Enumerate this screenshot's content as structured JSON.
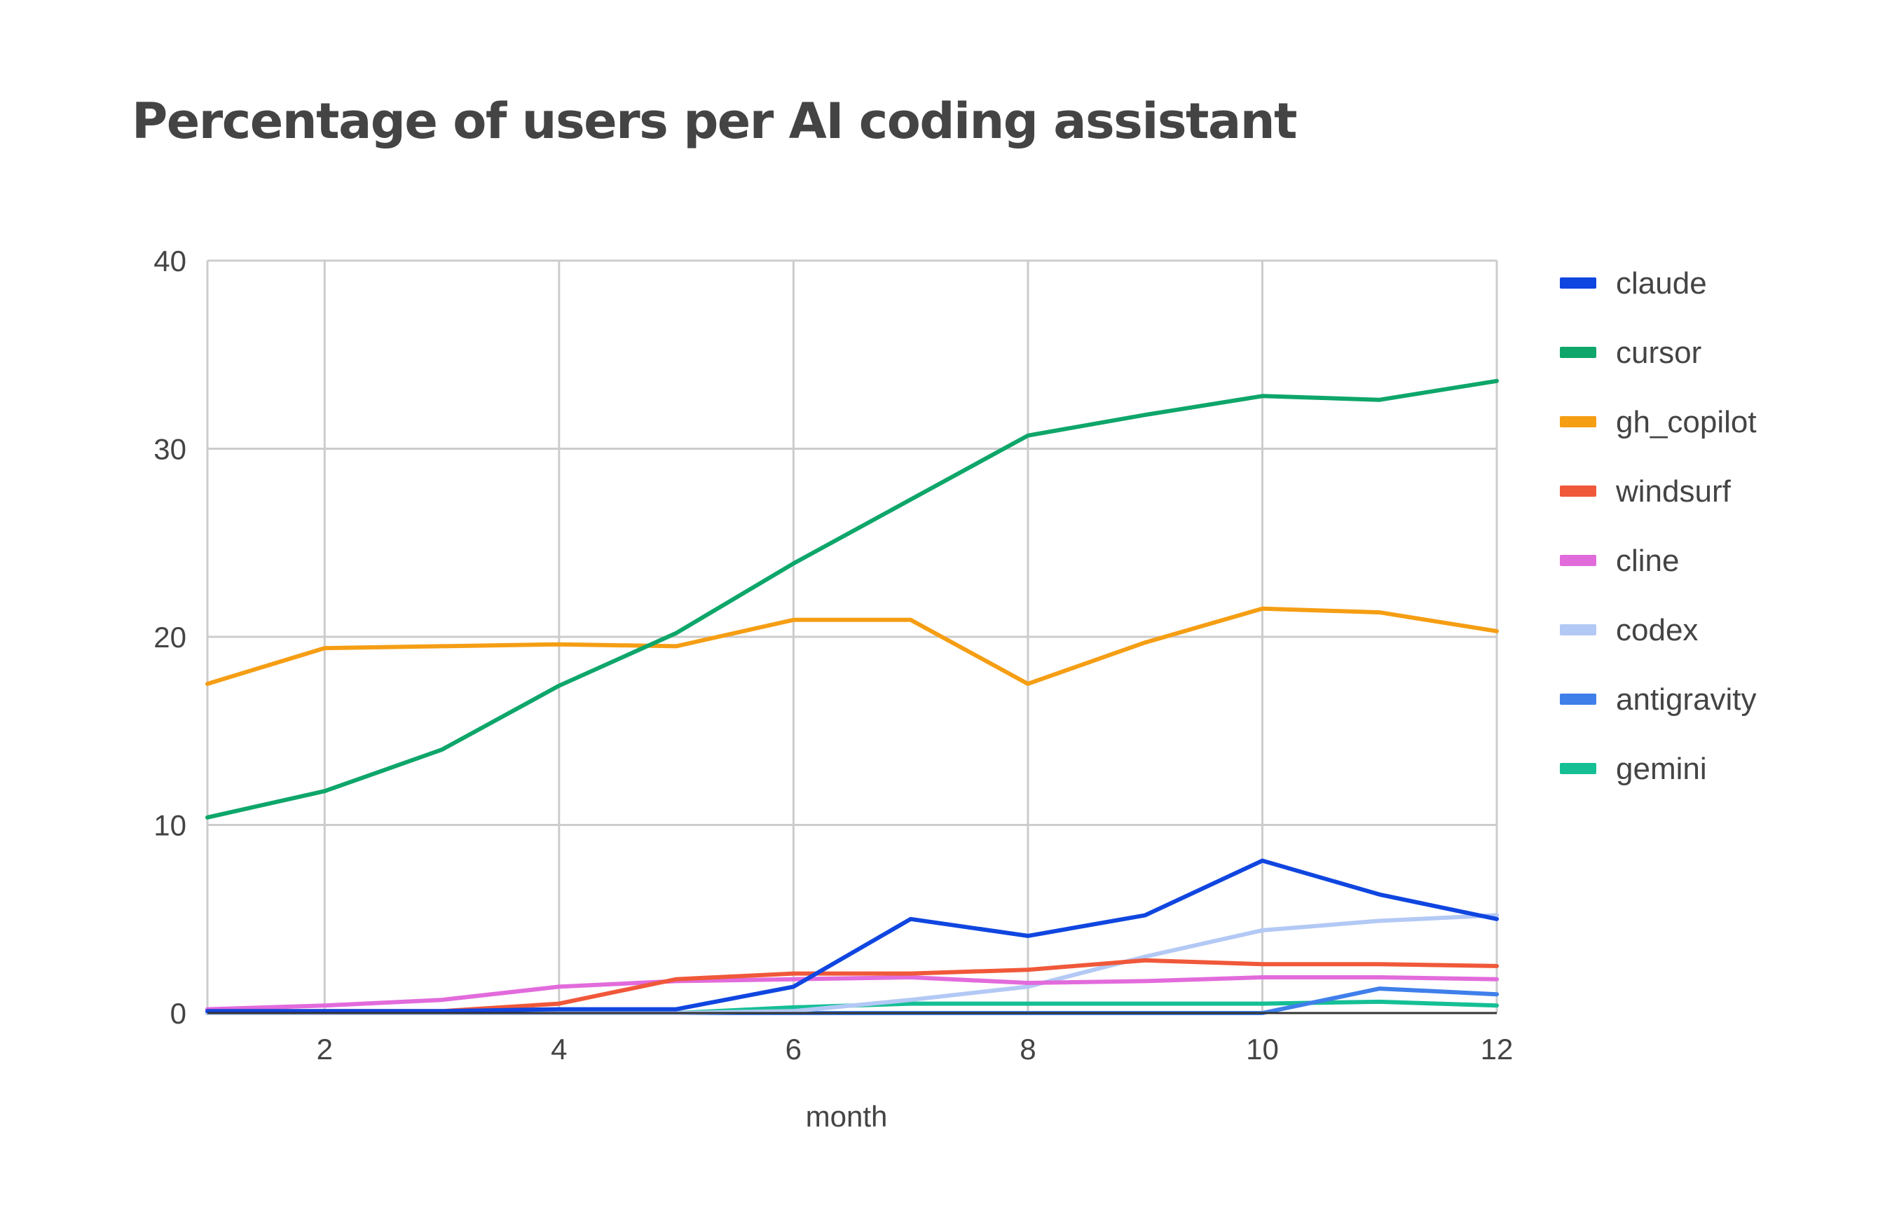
{
  "chart_data": {
    "type": "line",
    "title": "Percentage of users per AI coding assistant",
    "xlabel": "month",
    "ylabel": "",
    "xlim": [
      1,
      12
    ],
    "ylim": [
      0,
      40
    ],
    "x_ticks": [
      2,
      4,
      6,
      8,
      10,
      12
    ],
    "y_ticks": [
      0,
      10,
      20,
      30,
      40
    ],
    "grid": true,
    "legend_position": "right",
    "x": [
      1,
      2,
      3,
      4,
      5,
      6,
      7,
      8,
      9,
      10,
      11,
      12
    ],
    "series": [
      {
        "name": "claude",
        "color": "#1046e0",
        "values": [
          0.1,
          0.1,
          0.1,
          0.2,
          0.2,
          1.4,
          5.0,
          4.1,
          5.2,
          8.1,
          6.3,
          5.0
        ]
      },
      {
        "name": "cursor",
        "color": "#0ea66a",
        "values": [
          10.4,
          11.8,
          14.0,
          17.4,
          20.2,
          23.9,
          27.3,
          30.7,
          31.8,
          32.8,
          32.6,
          33.6
        ]
      },
      {
        "name": "gh_copilot",
        "color": "#f59e14",
        "values": [
          17.5,
          19.4,
          19.5,
          19.6,
          19.5,
          20.9,
          20.9,
          17.5,
          19.7,
          21.5,
          21.3,
          20.3
        ]
      },
      {
        "name": "windsurf",
        "color": "#f0583a",
        "values": [
          0.1,
          0.1,
          0.1,
          0.5,
          1.8,
          2.1,
          2.1,
          2.3,
          2.8,
          2.6,
          2.6,
          2.5
        ]
      },
      {
        "name": "cline",
        "color": "#e26bdc",
        "values": [
          0.2,
          0.4,
          0.7,
          1.4,
          1.7,
          1.8,
          1.9,
          1.6,
          1.7,
          1.9,
          1.9,
          1.8
        ]
      },
      {
        "name": "codex",
        "color": "#b3c9f5",
        "values": [
          0,
          0,
          0,
          0,
          0,
          0.1,
          0.7,
          1.4,
          3.0,
          4.4,
          4.9,
          5.2
        ]
      },
      {
        "name": "antigravity",
        "color": "#3f7fea",
        "values": [
          0,
          0,
          0,
          0,
          0,
          0,
          0,
          0,
          0,
          0,
          1.3,
          1.0
        ]
      },
      {
        "name": "gemini",
        "color": "#15bf95",
        "values": [
          0,
          0,
          0,
          0,
          0,
          0.3,
          0.5,
          0.5,
          0.5,
          0.5,
          0.6,
          0.4
        ]
      }
    ]
  },
  "colors": {
    "grid": "#cccccc",
    "baseline": "#333333",
    "text": "#444444"
  }
}
